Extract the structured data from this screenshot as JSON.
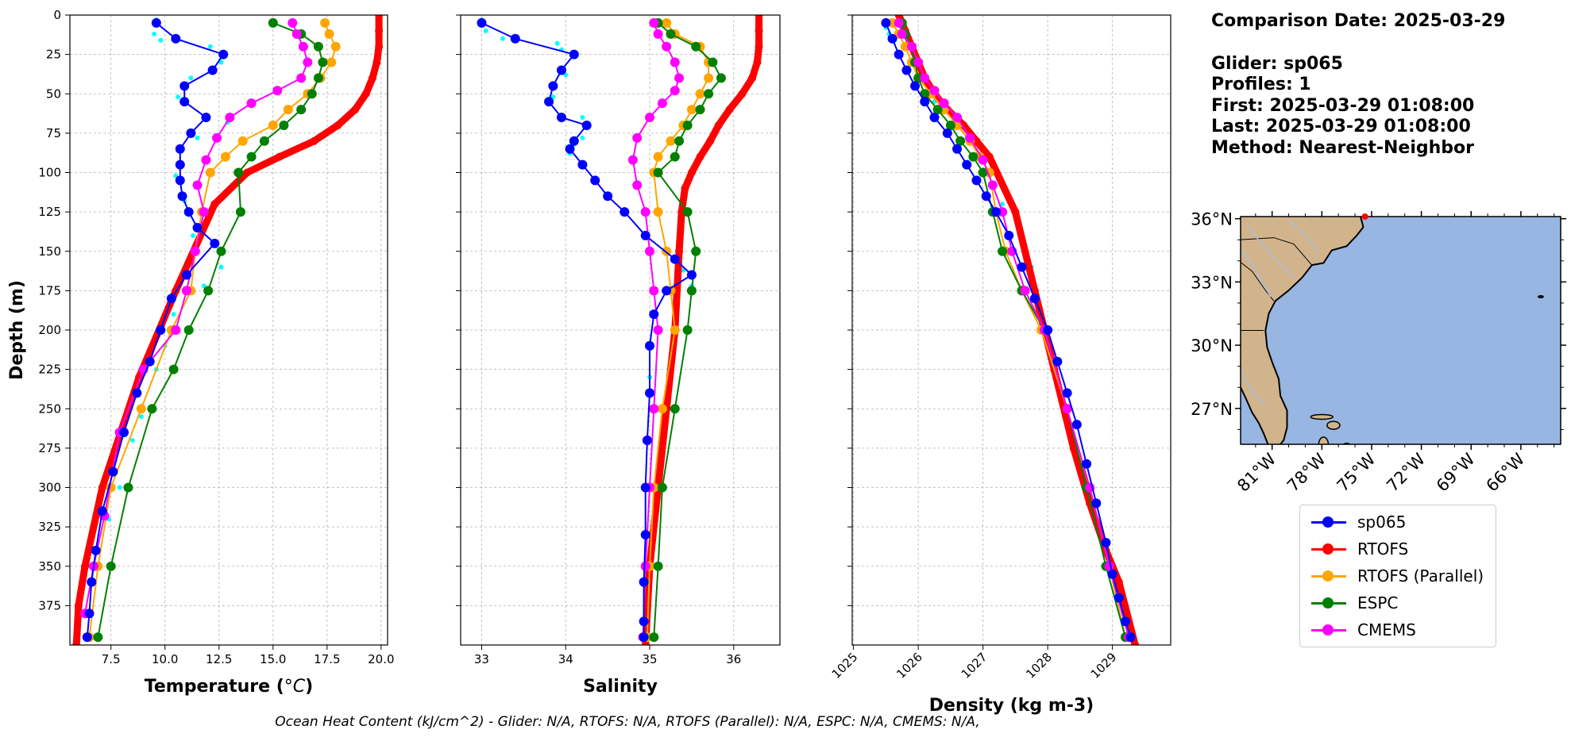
{
  "info": {
    "comparison": "Comparison Date: 2025-03-29",
    "glider": "Glider: sp065",
    "profiles": "Profiles: 1",
    "first": "First: 2025-03-29 01:08:00",
    "last": "Last: 2025-03-29 01:08:00",
    "method": "Method: Nearest-Neighbor"
  },
  "footer": "Ocean Heat Content (kJ/cm^2) - Glider: N/A,  RTOFS: N/A,  RTOFS (Parallel): N/A,  ESPC: N/A,  CMEMS: N/A,",
  "colors": {
    "sp065": "#0000ff",
    "glider_raw": "#00ffff",
    "RTOFS": "#ff0000",
    "RTOFS (Parallel)": "#ffa500",
    "ESPC": "#008000",
    "CMEMS": "#ff00ff",
    "land": "#d2b48c",
    "ocean": "#97b6e1"
  },
  "legend": [
    "sp065",
    "RTOFS",
    "RTOFS (Parallel)",
    "ESPC",
    "CMEMS"
  ],
  "map": {
    "lat_ticks": [
      36,
      33,
      30,
      27
    ],
    "lon_ticks": [
      -81,
      -78,
      -75,
      -72,
      -69,
      -66
    ],
    "lat_labels": [
      "36°N",
      "33°N",
      "30°N",
      "27°N"
    ],
    "lon_labels": [
      "81°W",
      "78°W",
      "75°W",
      "72°W",
      "69°W",
      "66°W"
    ],
    "extent": {
      "lon": [
        -82.9,
        -63.6
      ],
      "lat": [
        25.3,
        36.1
      ]
    },
    "glider_position": {
      "lon": -75.4,
      "lat": 36.1
    }
  },
  "chart_data": [
    {
      "type": "line",
      "xlabel": "Temperature (°C)",
      "ylabel": "Depth (m)",
      "xlim": [
        5.6,
        20.3
      ],
      "ylim": [
        400,
        0
      ],
      "xticks": [
        7.5,
        10.0,
        12.5,
        15.0,
        17.5,
        20.0
      ],
      "yticks": [
        0,
        25,
        50,
        75,
        100,
        125,
        150,
        175,
        200,
        225,
        250,
        275,
        300,
        325,
        350,
        375
      ],
      "grid": true,
      "raw": {
        "name": "",
        "x": [
          9.6,
          9.5,
          9.8,
          12.1,
          12.6,
          11.2,
          10.6,
          12.9,
          11.5,
          10.5,
          10.9,
          11.3,
          12.6,
          11.8,
          10.4,
          9.7,
          10.0,
          9.6,
          8.9,
          8.5,
          7.9,
          7.4,
          6.8,
          6.6
        ],
        "y": [
          3,
          12,
          16,
          20,
          30,
          40,
          52,
          68,
          78,
          102,
          118,
          140,
          160,
          172,
          190,
          200,
          210,
          225,
          255,
          270,
          300,
          320,
          350,
          380
        ]
      },
      "series": [
        {
          "name": "sp065",
          "x": [
            9.6,
            10.5,
            12.7,
            12.2,
            10.9,
            10.9,
            11.9,
            11.2,
            10.7,
            10.7,
            10.7,
            10.8,
            11.1,
            11.5,
            12.3,
            11.0,
            10.3,
            9.8,
            9.3,
            8.7,
            8.1,
            7.6,
            7.1,
            6.8,
            6.6,
            6.5,
            6.4
          ],
          "y": [
            5,
            15,
            25,
            35,
            45,
            55,
            65,
            75,
            85,
            95,
            105,
            115,
            125,
            135,
            145,
            165,
            180,
            200,
            220,
            240,
            265,
            290,
            315,
            340,
            360,
            380,
            395
          ]
        },
        {
          "name": "RTOFS",
          "x": [
            19.9,
            19.9,
            19.9,
            19.8,
            19.6,
            19.3,
            18.8,
            18.0,
            16.9,
            15.3,
            13.8,
            12.3,
            10.5,
            8.8,
            7.1,
            6.3,
            6.0,
            5.9
          ],
          "y": [
            0,
            10,
            20,
            30,
            40,
            50,
            60,
            70,
            80,
            90,
            100,
            120,
            175,
            230,
            300,
            350,
            375,
            400
          ]
        },
        {
          "name": "RTOFS (Parallel)",
          "x": [
            17.4,
            17.6,
            17.9,
            17.7,
            17.2,
            16.6,
            15.7,
            15.0,
            13.6,
            12.8,
            12.1,
            11.7,
            11.4,
            11.2,
            10.3,
            8.9,
            7.5,
            6.9,
            6.5
          ],
          "y": [
            5,
            12,
            20,
            30,
            40,
            50,
            60,
            70,
            80,
            90,
            100,
            125,
            150,
            175,
            200,
            250,
            300,
            350,
            395
          ]
        },
        {
          "name": "ESPC",
          "x": [
            15.0,
            16.3,
            17.1,
            17.3,
            17.1,
            16.8,
            16.3,
            15.5,
            14.6,
            14.0,
            13.4,
            13.5,
            12.6,
            12.0,
            11.1,
            10.4,
            9.4,
            8.3,
            7.5,
            6.9
          ],
          "y": [
            5,
            12,
            20,
            30,
            40,
            50,
            60,
            70,
            80,
            90,
            100,
            125,
            150,
            175,
            200,
            225,
            250,
            300,
            350,
            395
          ]
        },
        {
          "name": "CMEMS",
          "x": [
            15.9,
            16.1,
            16.4,
            16.6,
            16.3,
            15.2,
            14.0,
            13.0,
            12.4,
            11.9,
            11.5,
            11.8,
            11.4,
            11.0,
            10.5,
            9.0,
            7.9,
            7.2,
            6.7,
            6.3
          ],
          "y": [
            5,
            12,
            20,
            30,
            40,
            48,
            56,
            65,
            78,
            92,
            108,
            125,
            150,
            175,
            200,
            225,
            265,
            318,
            350,
            380
          ]
        }
      ]
    },
    {
      "type": "line",
      "xlabel": "Salinity",
      "ylabel": "",
      "xlim": [
        32.75,
        36.55
      ],
      "ylim": [
        400,
        0
      ],
      "xticks": [
        33,
        34,
        35,
        36
      ],
      "yticks": [
        0,
        25,
        50,
        75,
        100,
        125,
        150,
        175,
        200,
        225,
        250,
        275,
        300,
        325,
        350,
        375
      ],
      "grid": true,
      "raw": {
        "name": "",
        "x": [
          33.0,
          33.05,
          33.25,
          33.9,
          33.95,
          34.0,
          33.85,
          34.2,
          34.25,
          34.2,
          34.1,
          34.05,
          35.4,
          35.5,
          35.0
        ],
        "y": [
          3,
          10,
          15,
          18,
          22,
          38,
          52,
          65,
          70,
          78,
          82,
          88,
          162,
          172,
          230
        ]
      },
      "series": [
        {
          "name": "sp065",
          "x": [
            33.0,
            33.4,
            34.1,
            33.95,
            33.85,
            33.8,
            33.95,
            34.25,
            34.1,
            34.05,
            34.2,
            34.35,
            34.5,
            34.7,
            34.95,
            35.3,
            35.5,
            35.2,
            35.05,
            35.0,
            35.0,
            34.97,
            34.95,
            34.95,
            34.93,
            34.93,
            34.93
          ],
          "y": [
            5,
            15,
            25,
            35,
            45,
            55,
            65,
            70,
            80,
            85,
            95,
            105,
            115,
            125,
            140,
            155,
            165,
            175,
            190,
            210,
            240,
            270,
            300,
            330,
            360,
            385,
            395
          ]
        },
        {
          "name": "RTOFS",
          "x": [
            36.3,
            36.3,
            36.3,
            36.28,
            36.22,
            36.1,
            35.95,
            35.82,
            35.72,
            35.6,
            35.5,
            35.42,
            35.38,
            35.35,
            35.3,
            35.2,
            35.1,
            35.0,
            34.95
          ],
          "y": [
            0,
            10,
            20,
            30,
            40,
            50,
            60,
            70,
            80,
            90,
            100,
            110,
            125,
            150,
            200,
            250,
            300,
            350,
            400
          ]
        },
        {
          "name": "RTOFS (Parallel)",
          "x": [
            35.2,
            35.3,
            35.6,
            35.7,
            35.7,
            35.6,
            35.5,
            35.4,
            35.25,
            35.1,
            35.05,
            35.1,
            35.2,
            35.25,
            35.3,
            35.15,
            35.05,
            35.0,
            34.97
          ],
          "y": [
            5,
            12,
            20,
            30,
            40,
            50,
            60,
            70,
            80,
            90,
            100,
            125,
            150,
            175,
            200,
            250,
            300,
            350,
            395
          ]
        },
        {
          "name": "ESPC",
          "x": [
            35.1,
            35.25,
            35.55,
            35.75,
            35.85,
            35.7,
            35.6,
            35.45,
            35.35,
            35.3,
            35.1,
            35.45,
            35.55,
            35.5,
            35.45,
            35.3,
            35.15,
            35.1,
            35.05
          ],
          "y": [
            5,
            12,
            20,
            30,
            40,
            50,
            60,
            70,
            80,
            90,
            100,
            125,
            150,
            175,
            200,
            250,
            300,
            350,
            395
          ]
        },
        {
          "name": "CMEMS",
          "x": [
            35.05,
            35.1,
            35.2,
            35.3,
            35.35,
            35.3,
            35.15,
            35.0,
            34.85,
            34.8,
            34.85,
            34.95,
            35.0,
            35.05,
            35.1,
            35.05,
            35.0,
            34.95,
            34.92
          ],
          "y": [
            5,
            12,
            20,
            30,
            40,
            48,
            56,
            65,
            78,
            92,
            108,
            125,
            150,
            175,
            200,
            250,
            300,
            350,
            395
          ]
        }
      ]
    },
    {
      "type": "line",
      "xlabel": "Density (kg m-3)",
      "ylabel": "",
      "xlim": [
        1024.98,
        1029.9
      ],
      "ylim": [
        400,
        0
      ],
      "xticks": [
        1025,
        1026,
        1027,
        1028,
        1029
      ],
      "yticks": [
        0,
        25,
        50,
        75,
        100,
        125,
        150,
        175,
        200,
        225,
        250,
        275,
        300,
        325,
        350,
        375
      ],
      "grid": true,
      "raw": {
        "name": "",
        "x": [
          1025.5,
          1025.55,
          1026.2,
          1026.25,
          1026.6,
          1026.75,
          1027.3,
          1027.75
        ],
        "y": [
          8,
          12,
          50,
          55,
          70,
          78,
          120,
          160
        ]
      },
      "series": [
        {
          "name": "sp065",
          "x": [
            1025.5,
            1025.6,
            1025.7,
            1025.82,
            1025.95,
            1026.1,
            1026.25,
            1026.45,
            1026.6,
            1026.75,
            1026.9,
            1027.05,
            1027.2,
            1027.4,
            1027.6,
            1027.8,
            1028.0,
            1028.15,
            1028.3,
            1028.45,
            1028.6,
            1028.75,
            1028.9,
            1029.0,
            1029.1,
            1029.2,
            1029.28
          ],
          "y": [
            5,
            15,
            25,
            35,
            45,
            55,
            65,
            75,
            85,
            95,
            105,
            115,
            125,
            140,
            160,
            180,
            200,
            220,
            240,
            260,
            285,
            310,
            335,
            355,
            370,
            385,
            395
          ]
        },
        {
          "name": "RTOFS",
          "x": [
            1025.7,
            1025.8,
            1025.9,
            1026.0,
            1026.1,
            1026.25,
            1026.45,
            1026.7,
            1026.9,
            1027.1,
            1027.5,
            1027.8,
            1028.1,
            1028.4,
            1028.65,
            1028.9,
            1029.1,
            1029.35
          ],
          "y": [
            0,
            10,
            20,
            30,
            40,
            50,
            60,
            70,
            80,
            90,
            125,
            175,
            225,
            275,
            310,
            340,
            360,
            400
          ]
        },
        {
          "name": "RTOFS (Parallel)",
          "x": [
            1025.6,
            1025.7,
            1025.8,
            1025.9,
            1026.0,
            1026.2,
            1026.4,
            1026.6,
            1026.8,
            1026.95,
            1027.1,
            1027.2,
            1027.35,
            1027.6,
            1027.9,
            1028.3,
            1028.65,
            1028.95,
            1029.2
          ],
          "y": [
            5,
            12,
            20,
            30,
            40,
            50,
            60,
            70,
            80,
            90,
            100,
            125,
            150,
            175,
            200,
            250,
            300,
            350,
            395
          ]
        },
        {
          "name": "ESPC",
          "x": [
            1025.75,
            1025.8,
            1025.9,
            1025.95,
            1026.0,
            1026.1,
            1026.3,
            1026.5,
            1026.65,
            1026.85,
            1027.0,
            1027.15,
            1027.3,
            1027.6,
            1027.95,
            1028.3,
            1028.6,
            1028.9,
            1029.2
          ],
          "y": [
            5,
            12,
            20,
            30,
            40,
            50,
            60,
            70,
            80,
            90,
            100,
            125,
            150,
            175,
            200,
            250,
            300,
            350,
            395
          ]
        },
        {
          "name": "CMEMS",
          "x": [
            1025.7,
            1025.75,
            1025.9,
            1026.0,
            1026.1,
            1026.25,
            1026.4,
            1026.6,
            1026.8,
            1027.0,
            1027.15,
            1027.3,
            1027.45,
            1027.65,
            1027.95,
            1028.3,
            1028.65,
            1028.95,
            1029.25
          ],
          "y": [
            5,
            12,
            20,
            30,
            40,
            48,
            56,
            65,
            78,
            92,
            108,
            125,
            150,
            175,
            200,
            250,
            300,
            350,
            395
          ]
        }
      ]
    }
  ]
}
